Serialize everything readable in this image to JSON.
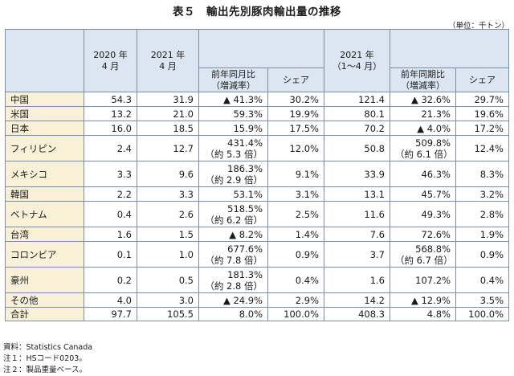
{
  "title": "表５　輸出先別豚肉輸出量の推移",
  "unit": "（単位：千トン）",
  "header": {
    "col2020": "2020 年\n4 月",
    "col2021": "2021 年\n4 月",
    "col2021_yoy": "前年同月比\n（増減率）",
    "col2021_share": "シェア",
    "col2021_ytd": "2021 年\n（1～4 月）",
    "col2021_ytd_yoy": "前年同期比\n（増減率）",
    "col2021_ytd_share": "シェア"
  },
  "rows": [
    {
      "name": "中国",
      "v2020": "54.3",
      "v2021": "31.9",
      "yoy": "▲ 41.3%",
      "share": "30.2%",
      "ytd": "121.4",
      "ytd_yoy": "▲ 32.6%",
      "ytd_share": "29.7%"
    },
    {
      "name": "米国",
      "v2020": "13.2",
      "v2021": "21.0",
      "yoy": "59.3%",
      "share": "19.9%",
      "ytd": "80.1",
      "ytd_yoy": "21.3%",
      "ytd_share": "19.6%"
    },
    {
      "name": "日本",
      "v2020": "16.0",
      "v2021": "18.5",
      "yoy": "15.9%",
      "share": "17.5%",
      "ytd": "70.2",
      "ytd_yoy": "▲ 4.0%",
      "ytd_share": "17.2%"
    },
    {
      "name": "フィリピン",
      "v2020": "2.4",
      "v2021": "12.7",
      "yoy": "431.4%\n（約 5.3 倍）",
      "share": "12.0%",
      "ytd": "50.8",
      "ytd_yoy": "509.8%\n（約 6.1 倍）",
      "ytd_share": "12.4%"
    },
    {
      "name": "メキシコ",
      "v2020": "3.3",
      "v2021": "9.6",
      "yoy": "186.3%\n（約 2.9 倍）",
      "share": "9.1%",
      "ytd": "33.9",
      "ytd_yoy": "46.3%",
      "ytd_share": "8.3%"
    },
    {
      "name": "韓国",
      "v2020": "2.2",
      "v2021": "3.3",
      "yoy": "53.1%",
      "share": "3.1%",
      "ytd": "13.1",
      "ytd_yoy": "45.7%",
      "ytd_share": "3.2%"
    },
    {
      "name": "ベトナム",
      "v2020": "0.4",
      "v2021": "2.6",
      "yoy": "518.5%\n（約 6.2 倍）",
      "share": "2.5%",
      "ytd": "11.6",
      "ytd_yoy": "49.3%",
      "ytd_share": "2.8%"
    },
    {
      "name": "台湾",
      "v2020": "1.6",
      "v2021": "1.5",
      "yoy": "▲ 8.2%",
      "share": "1.4%",
      "ytd": "7.6",
      "ytd_yoy": "72.6%",
      "ytd_share": "1.9%"
    },
    {
      "name": "コロンビア",
      "v2020": "0.1",
      "v2021": "1.0",
      "yoy": "677.6%\n（約 7.8 倍）",
      "share": "0.9%",
      "ytd": "3.7",
      "ytd_yoy": "568.8%\n（約 6.7 倍）",
      "ytd_share": "0.9%"
    },
    {
      "name": "豪州",
      "v2020": "0.2",
      "v2021": "0.5",
      "yoy": "181.3%\n（約 2.8 倍）",
      "share": "0.4%",
      "ytd": "1.6",
      "ytd_yoy": "107.2%",
      "ytd_share": "0.4%"
    },
    {
      "name": "その他",
      "v2020": "4.0",
      "v2021": "3.0",
      "yoy": "▲ 24.9%",
      "share": "2.9%",
      "ytd": "14.2",
      "ytd_yoy": "▲ 12.9%",
      "ytd_share": "3.5%"
    },
    {
      "name": "合計",
      "v2020": "97.7",
      "v2021": "105.5",
      "yoy": "8.0%",
      "share": "100.0%",
      "ytd": "408.3",
      "ytd_yoy": "4.8%",
      "ytd_share": "100.0%"
    }
  ],
  "notes": [
    "資料：Statistics Canada",
    "注１：HSコード0203。",
    "注２：製品重量ベース。"
  ]
}
